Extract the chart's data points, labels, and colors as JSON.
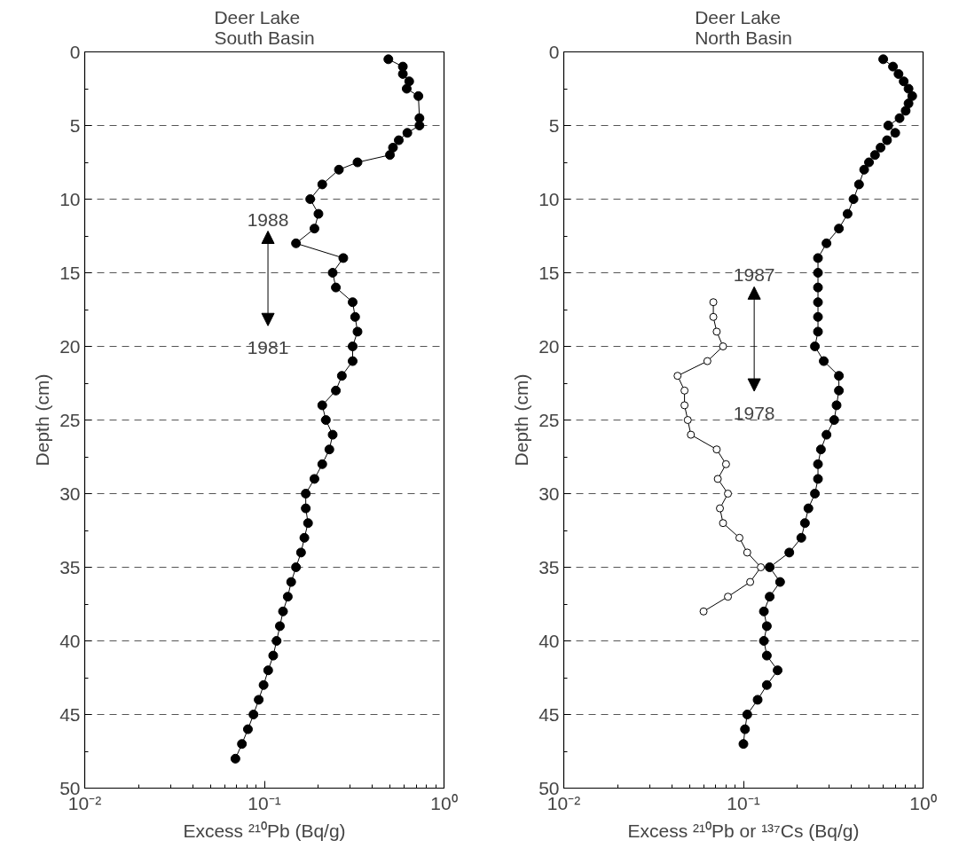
{
  "chart_data": [
    {
      "type": "line",
      "title": "Deer Lake\nSouth Basin",
      "xlabel": "Excess ²¹⁰Pb (Bq/g)",
      "ylabel": "Depth (cm)",
      "log": "x",
      "xlim": [
        0.01,
        1
      ],
      "xticks": [
        {
          "value": 0.01,
          "label": "10⁻²"
        },
        {
          "value": 0.1,
          "label": "10⁻¹"
        },
        {
          "value": 1,
          "label": "10⁰"
        }
      ],
      "ylim": [
        50,
        0
      ],
      "yticks": [
        0,
        5,
        10,
        15,
        20,
        25,
        30,
        35,
        40,
        45,
        50
      ],
      "grid": "y",
      "marker": "circle",
      "line_style": "solid",
      "orientation": "horizontal",
      "series": [
        {
          "color": "#000000",
          "values": [
            0.49,
            0.59,
            0.59,
            0.64,
            0.62,
            0.72,
            0.73,
            0.73,
            0.625,
            0.56,
            0.52,
            0.5,
            0.33,
            0.26,
            0.21,
            0.18,
            0.2,
            0.19,
            0.15,
            0.275,
            0.24,
            0.25,
            0.31,
            0.32,
            0.33,
            0.31,
            0.31,
            0.27,
            0.25,
            0.21,
            0.22,
            0.24,
            0.23,
            0.21,
            0.19,
            0.17,
            0.17,
            0.175,
            0.167,
            0.16,
            0.15,
            0.141,
            0.135,
            0.127,
            0.122,
            0.117,
            0.112,
            0.105,
            0.099,
            0.093,
            0.087,
            0.081,
            0.075,
            0.069
          ],
          "x": [
            0.5,
            1,
            1.5,
            2,
            2.5,
            3,
            4.5,
            5,
            5.5,
            6,
            6.5,
            7,
            7.5,
            8,
            9,
            10,
            11,
            12,
            13,
            14,
            15,
            16,
            17,
            18,
            19,
            20,
            21,
            22,
            23,
            24,
            25,
            26,
            27,
            28,
            29,
            30,
            31,
            32,
            33,
            34,
            35,
            36,
            37,
            38,
            39,
            40,
            41,
            42,
            43,
            44,
            45,
            46,
            47,
            48
          ]
        }
      ],
      "annotations": [
        "1988",
        "1981"
      ]
    },
    {
      "type": "line",
      "title": "Deer Lake\nNorth Basin",
      "xlabel": "Excess ²¹⁰Pb or ¹³⁷Cs (Bq/g)",
      "ylabel": "Depth (cm)",
      "log": "x",
      "xlim": [
        0.01,
        1
      ],
      "xticks": [
        {
          "value": 0.01,
          "label": "10⁻²"
        },
        {
          "value": 0.1,
          "label": "10⁻¹"
        },
        {
          "value": 1,
          "label": "10⁰"
        }
      ],
      "ylim": [
        50,
        0
      ],
      "yticks": [
        0,
        5,
        10,
        15,
        20,
        25,
        30,
        35,
        40,
        45,
        50
      ],
      "grid": "y",
      "marker": "circle",
      "line_style": "solid",
      "orientation": "horizontal",
      "series": [
        {
          "color": "#000000",
          "values": [
            0.6,
            0.68,
            0.73,
            0.78,
            0.83,
            0.87,
            0.83,
            0.8,
            0.74,
            0.64,
            0.7,
            0.63,
            0.58,
            0.54,
            0.5,
            0.47,
            0.44,
            0.41,
            0.38,
            0.34,
            0.29,
            0.26,
            0.26,
            0.26,
            0.26,
            0.26,
            0.26,
            0.25,
            0.28,
            0.34,
            0.34,
            0.33,
            0.32,
            0.29,
            0.27,
            0.26,
            0.26,
            0.25,
            0.23,
            0.22,
            0.21,
            0.18,
            0.14,
            0.16,
            0.14,
            0.13,
            0.135,
            0.13,
            0.135,
            0.155,
            0.135,
            0.12,
            0.105,
            0.102,
            0.1
          ],
          "x": [
            0.5,
            1,
            1.5,
            2,
            2.5,
            3,
            3.5,
            4,
            4.5,
            5,
            5.5,
            6,
            6.5,
            7,
            7.5,
            8,
            9,
            10,
            11,
            12,
            13,
            14,
            15,
            16,
            17,
            18,
            19,
            20,
            21,
            22,
            23,
            24,
            25,
            26,
            27,
            28,
            29,
            30,
            31,
            32,
            33,
            34,
            35,
            36,
            37,
            38,
            39,
            40,
            41,
            42,
            43,
            44,
            45,
            46,
            47
          ]
        },
        {
          "color": "#ffffff",
          "values": [
            0.068,
            0.068,
            0.071,
            0.077,
            0.063,
            0.043,
            0.047,
            0.047,
            0.049,
            0.051,
            0.071,
            0.08,
            0.072,
            0.082,
            0.074,
            0.077,
            0.095,
            0.105,
            0.125,
            0.109,
            0.082,
            0.06
          ],
          "x": [
            17,
            18,
            19,
            20,
            21,
            22,
            23,
            24,
            25,
            26,
            27,
            28,
            29,
            30,
            31,
            32,
            33,
            34,
            35,
            36,
            37,
            38
          ]
        }
      ],
      "annotations": [
        "1987",
        "1978"
      ]
    }
  ]
}
